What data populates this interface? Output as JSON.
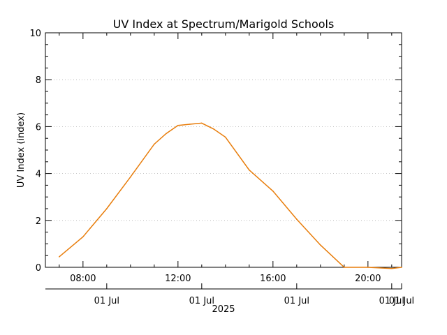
{
  "chart_data": {
    "type": "line",
    "title": "UV Index at Spectrum/Marigold Schools",
    "xlabel": "",
    "ylabel": "UV Index (index)",
    "ylim": [
      0,
      10
    ],
    "yticks": [
      0,
      2,
      4,
      6,
      8,
      10
    ],
    "y_tick_labels": [
      "0",
      "2",
      "4",
      "6",
      "8",
      "10"
    ],
    "xlim": [
      "06:25",
      "21:25"
    ],
    "x_time_ticks": [
      {
        "time": "08:00",
        "label": "08:00"
      },
      {
        "time": "12:00",
        "label": "12:00"
      },
      {
        "time": "16:00",
        "label": "16:00"
      },
      {
        "time": "20:00",
        "label": "20:00"
      }
    ],
    "date_axis": {
      "tick_labels": [
        "01 Jul",
        "01 Jul",
        "01 Jul",
        "01 Jul",
        "01 Jul"
      ],
      "year_label": "2025"
    },
    "grid": "horizontal dotted",
    "series": [
      {
        "color": "#e87d0b",
        "x": [
          "07:00",
          "08:00",
          "09:00",
          "10:00",
          "11:00",
          "11:30",
          "12:00",
          "12:30",
          "13:00",
          "13:30",
          "14:00",
          "15:00",
          "16:00",
          "17:00",
          "18:00",
          "19:00",
          "20:00",
          "21:00",
          "21:25"
        ],
        "y": [
          0.45,
          1.3,
          2.5,
          3.85,
          5.25,
          5.7,
          6.05,
          6.1,
          6.15,
          5.9,
          5.55,
          4.15,
          3.25,
          2.05,
          0.95,
          0.0,
          0.0,
          -0.05,
          0.0
        ]
      }
    ]
  }
}
